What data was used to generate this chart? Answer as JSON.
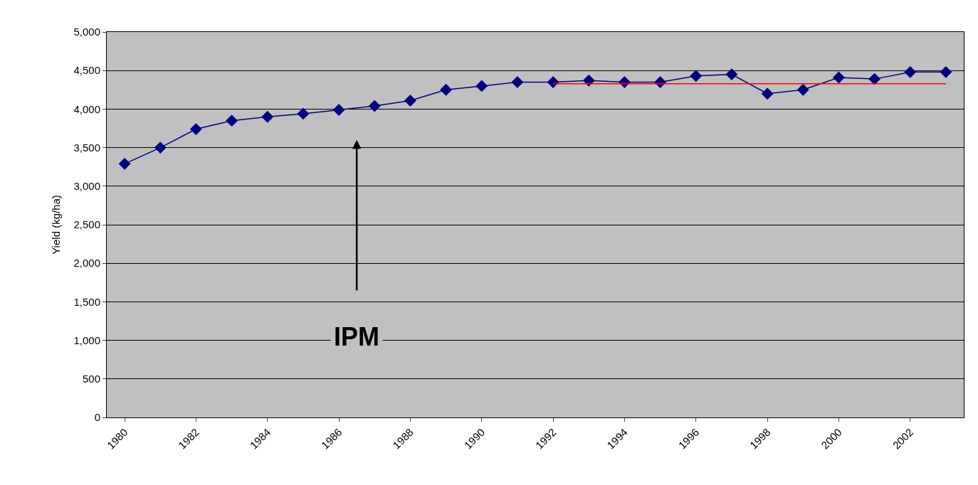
{
  "chart_data": {
    "type": "line",
    "ylabel": "Yield (kg/ha)",
    "categories": [
      "1980",
      null,
      "1982",
      null,
      "1984",
      null,
      "1986",
      null,
      "1988",
      null,
      "1990",
      null,
      "1992",
      null,
      "1994",
      null,
      "1996",
      null,
      "1998",
      null,
      "2000",
      null,
      "2002",
      null
    ],
    "series": [
      {
        "color": "#000080",
        "marker": "diamond",
        "values": [
          3290,
          3500,
          3740,
          3850,
          3900,
          3940,
          3990,
          4040,
          4110,
          4250,
          4300,
          4350,
          4350,
          4370,
          4350,
          4350,
          4430,
          4450,
          4200,
          4250,
          4410,
          4390,
          4480,
          4480
        ]
      },
      {
        "color": "#ff0000",
        "marker": "none",
        "values": [
          null,
          null,
          null,
          null,
          null,
          null,
          null,
          null,
          null,
          null,
          null,
          null,
          4330,
          4330,
          4330,
          4330,
          4330,
          4330,
          4330,
          4330,
          4330,
          4330,
          4330,
          4330
        ]
      }
    ],
    "ylim": [
      0,
      5000
    ],
    "yticks": [
      0,
      500,
      {
        "value": 1000,
        "label": "1,000"
      },
      {
        "value": 1500,
        "label": "1,500"
      },
      {
        "value": 2000,
        "label": "2,000"
      },
      {
        "value": 2500,
        "label": "2,500"
      },
      {
        "value": 3000,
        "label": "3,000"
      },
      {
        "value": 3500,
        "label": "3,500"
      },
      {
        "value": 4000,
        "label": "4,000"
      },
      {
        "value": 4500,
        "label": "4,500"
      },
      {
        "value": 5000,
        "label": "5,000"
      }
    ],
    "grid": "y",
    "legend": false,
    "annotations": [
      "IPM"
    ]
  }
}
